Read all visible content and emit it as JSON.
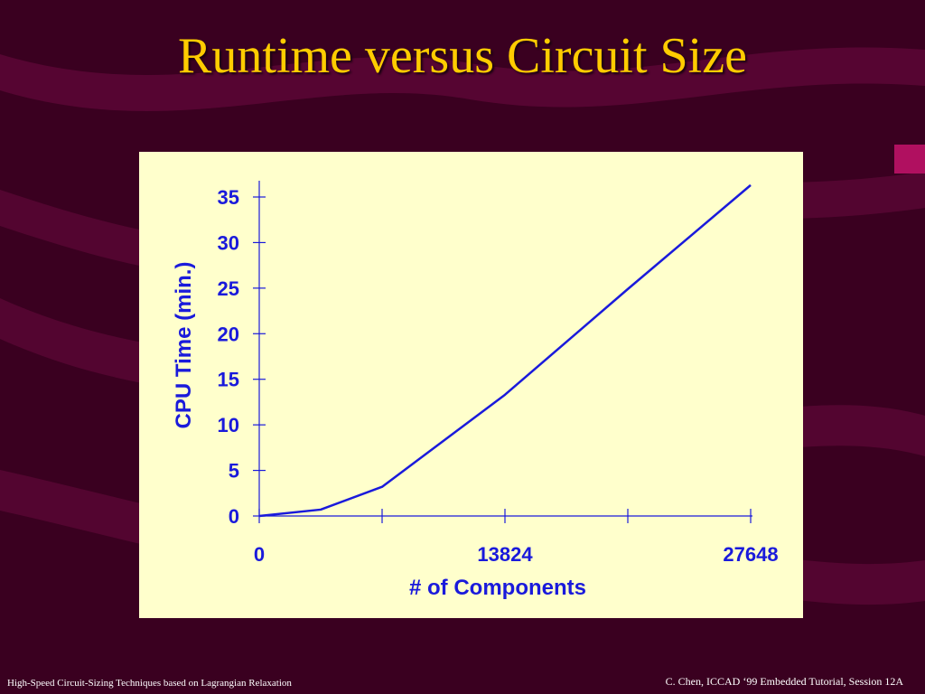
{
  "slide": {
    "title": "Runtime versus Circuit Size",
    "footer_left": "High-Speed Circuit-Sizing Techniques based on Lagrangian Relaxation",
    "footer_right": "C. Chen, ICCAD ‘99 Embedded Tutorial, Session 12A"
  },
  "colors": {
    "background": "#3a0020",
    "title": "#ffcc00",
    "panel": "#ffffcc",
    "series": "#1a1adb"
  },
  "chart_data": {
    "type": "line",
    "title": "",
    "xlabel": "# of Components",
    "ylabel": "CPU Time (min.)",
    "xlim": [
      0,
      27648
    ],
    "ylim": [
      0,
      35
    ],
    "xticks": [
      0,
      6912,
      13824,
      20736,
      27648
    ],
    "xtick_labels": [
      "0",
      "",
      "13824",
      "",
      "27648"
    ],
    "yticks": [
      0,
      5,
      10,
      15,
      20,
      25,
      30,
      35
    ],
    "ytick_labels": [
      "0",
      "5",
      "10",
      "15",
      "20",
      "25",
      "30",
      "35"
    ],
    "grid": false,
    "series": [
      {
        "x": [
          0,
          3456,
          6912,
          13824,
          20736,
          27648
        ],
        "values": [
          0,
          0.7,
          3.2,
          13.3,
          24.9,
          36.3
        ]
      }
    ]
  }
}
